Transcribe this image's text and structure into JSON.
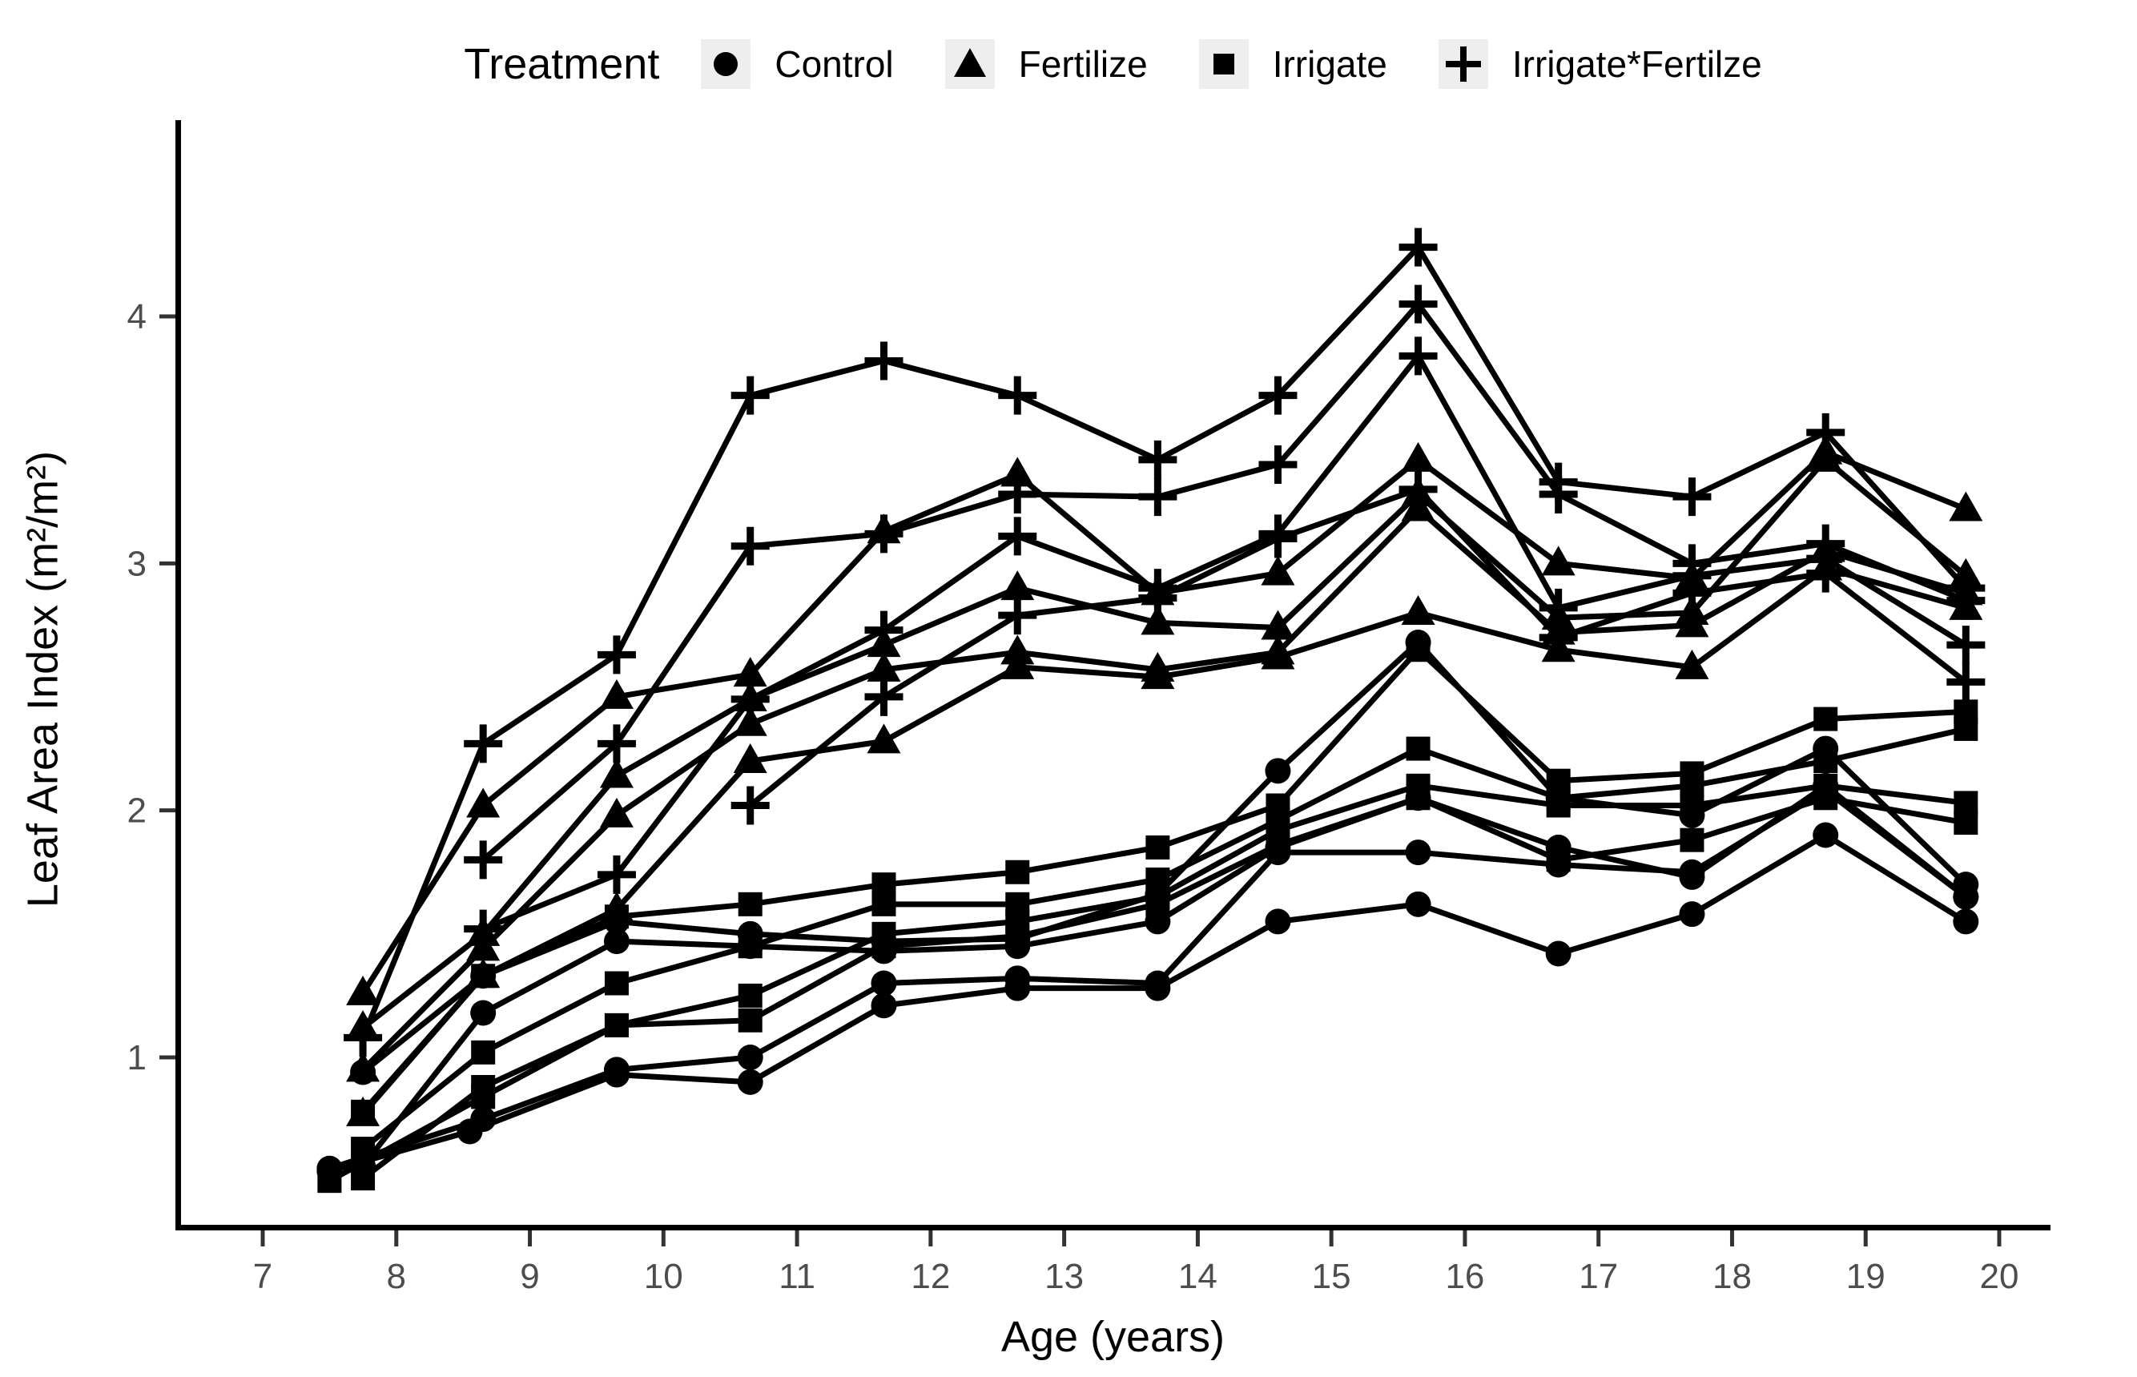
{
  "legend": {
    "title": "Treatment",
    "items": [
      {
        "label": "Control",
        "marker": "circle"
      },
      {
        "label": "Fertilize",
        "marker": "triangle"
      },
      {
        "label": "Irrigate",
        "marker": "square"
      },
      {
        "label": "Irrigate*Fertilze",
        "marker": "plus"
      }
    ]
  },
  "colors": {
    "series": "#000000",
    "axis": "#000000",
    "tick_label": "#4d4d4d",
    "legend_key_bg": "#eeeeee",
    "background": "#ffffff"
  },
  "chart_data": {
    "type": "line",
    "title": "",
    "xlabel": "Age (years)",
    "ylabel": "Leaf Area Index (m²/m²)",
    "xlim": [
      6.35,
      20.38
    ],
    "ylim": [
      0.31,
      4.79
    ],
    "x_ticks": [
      7,
      8,
      9,
      10,
      11,
      12,
      13,
      14,
      15,
      16,
      17,
      18,
      19,
      20
    ],
    "y_ticks": [
      1,
      2,
      3,
      4
    ],
    "grid": false,
    "legend_position": "top",
    "marker_size_note": "solid black markers, one marker shape per treatment",
    "series": [
      {
        "name": "Control 1",
        "treatment": "Control",
        "marker": "circle",
        "x": [
          7.75,
          8.65,
          9.65,
          10.65,
          11.65,
          12.65,
          13.7,
          14.6,
          15.65,
          16.7,
          17.7,
          18.7,
          19.75
        ],
        "y": [
          0.94,
          1.33,
          1.55,
          1.5,
          1.47,
          1.48,
          1.66,
          2.16,
          2.68,
          2.05,
          1.98,
          2.25,
          1.7
        ]
      },
      {
        "name": "Control 2",
        "treatment": "Control",
        "marker": "circle",
        "x": [
          7.75,
          8.65,
          9.65,
          10.65,
          11.65,
          12.65,
          13.7,
          14.6,
          15.65,
          16.7,
          17.7,
          18.7,
          19.75
        ],
        "y": [
          0.56,
          1.18,
          1.47,
          1.45,
          1.43,
          1.45,
          1.55,
          1.85,
          2.05,
          1.85,
          1.73,
          2.1,
          1.65
        ]
      },
      {
        "name": "Control 3",
        "treatment": "Control",
        "marker": "circle",
        "x": [
          7.5,
          8.65,
          9.65,
          10.65,
          11.65,
          12.65,
          13.7,
          14.6,
          15.65,
          16.7,
          17.7,
          18.7,
          19.75
        ],
        "y": [
          0.55,
          0.75,
          0.95,
          1.0,
          1.3,
          1.32,
          1.3,
          1.83,
          1.83,
          1.78,
          1.75,
          2.08,
          1.65
        ]
      },
      {
        "name": "Control 4",
        "treatment": "Control",
        "marker": "circle",
        "x": [
          7.5,
          8.55,
          9.65,
          10.65,
          11.65,
          12.65,
          13.7,
          14.6,
          15.65,
          16.7,
          17.7,
          18.7,
          19.75
        ],
        "y": [
          0.54,
          0.7,
          0.93,
          0.9,
          1.21,
          1.28,
          1.28,
          1.55,
          1.62,
          1.42,
          1.58,
          1.9,
          1.55
        ]
      },
      {
        "name": "Fertilize 1",
        "treatment": "Fertilize",
        "marker": "triangle",
        "x": [
          7.75,
          8.65,
          9.65,
          10.65,
          11.65,
          12.65,
          13.7,
          14.6,
          15.65,
          16.7,
          17.7,
          18.7,
          19.75
        ],
        "y": [
          1.26,
          2.02,
          2.46,
          2.55,
          3.13,
          3.36,
          2.88,
          2.96,
          3.42,
          3.0,
          2.94,
          3.45,
          3.22
        ]
      },
      {
        "name": "Fertilize 2",
        "treatment": "Fertilize",
        "marker": "triangle",
        "x": [
          7.75,
          8.65,
          9.65,
          10.65,
          11.65,
          12.65,
          13.7,
          14.6,
          15.65,
          16.7,
          17.7,
          18.7,
          19.75
        ],
        "y": [
          1.12,
          1.5,
          2.14,
          2.45,
          2.67,
          2.9,
          2.76,
          2.74,
          3.28,
          2.78,
          2.8,
          3.42,
          2.95
        ]
      },
      {
        "name": "Fertilize 3",
        "treatment": "Fertilize",
        "marker": "triangle",
        "x": [
          7.75,
          8.65,
          9.65,
          10.65,
          11.65,
          12.65,
          13.7,
          14.6,
          15.65,
          16.7,
          17.7,
          18.7,
          19.75
        ],
        "y": [
          0.95,
          1.44,
          1.98,
          2.35,
          2.57,
          2.64,
          2.57,
          2.64,
          3.22,
          2.72,
          2.75,
          3.05,
          2.88
        ]
      },
      {
        "name": "Fertilize 4",
        "treatment": "Fertilize",
        "marker": "triangle",
        "x": [
          7.75,
          8.65,
          9.65,
          10.65,
          11.65,
          12.65,
          13.7,
          14.6,
          15.65,
          16.7,
          17.7,
          18.7,
          19.75
        ],
        "y": [
          0.77,
          1.33,
          1.6,
          2.2,
          2.28,
          2.58,
          2.54,
          2.62,
          2.8,
          2.65,
          2.58,
          2.98,
          2.82
        ]
      },
      {
        "name": "Irrigate 1",
        "treatment": "Irrigate",
        "marker": "square",
        "x": [
          7.75,
          8.65,
          9.65,
          10.65,
          11.65,
          12.65,
          13.7,
          14.6,
          15.65,
          16.7,
          17.7,
          18.7,
          19.75
        ],
        "y": [
          0.78,
          1.33,
          1.57,
          1.62,
          1.7,
          1.75,
          1.85,
          2.02,
          2.65,
          2.12,
          2.15,
          2.37,
          2.4
        ]
      },
      {
        "name": "Irrigate 2",
        "treatment": "Irrigate",
        "marker": "square",
        "x": [
          7.75,
          8.65,
          9.65,
          10.65,
          11.65,
          12.65,
          13.7,
          14.6,
          15.65,
          16.7,
          17.7,
          18.7,
          19.75
        ],
        "y": [
          0.63,
          1.02,
          1.3,
          1.45,
          1.62,
          1.62,
          1.72,
          1.96,
          2.25,
          2.05,
          2.1,
          2.2,
          2.33
        ]
      },
      {
        "name": "Irrigate 3",
        "treatment": "Irrigate",
        "marker": "square",
        "x": [
          7.75,
          8.65,
          9.65,
          10.65,
          11.65,
          12.65,
          13.7,
          14.6,
          15.65,
          16.7,
          17.7,
          18.7,
          19.75
        ],
        "y": [
          0.51,
          0.88,
          1.13,
          1.25,
          1.5,
          1.55,
          1.65,
          1.92,
          2.1,
          2.02,
          2.02,
          2.1,
          2.03
        ]
      },
      {
        "name": "Irrigate 4",
        "treatment": "Irrigate",
        "marker": "square",
        "x": [
          7.5,
          8.65,
          9.65,
          10.65,
          11.65,
          12.65,
          13.7,
          14.6,
          15.65,
          16.7,
          17.7,
          18.7,
          19.75
        ],
        "y": [
          0.5,
          0.84,
          1.13,
          1.15,
          1.45,
          1.49,
          1.62,
          1.86,
          2.05,
          1.8,
          1.88,
          2.05,
          1.95
        ]
      },
      {
        "name": "Irrigate*Fertilze 1",
        "treatment": "Irrigate*Fertilze",
        "marker": "plus",
        "x": [
          7.75,
          8.65,
          9.65,
          10.65,
          11.65,
          12.65,
          13.7,
          14.6,
          15.65,
          16.7,
          17.7,
          18.7,
          19.75
        ],
        "y": [
          1.08,
          2.27,
          2.63,
          3.68,
          3.82,
          3.68,
          3.42,
          3.68,
          4.28,
          3.33,
          3.27,
          3.53,
          2.9
        ]
      },
      {
        "name": "Irrigate*Fertilze 2",
        "treatment": "Irrigate*Fertilze",
        "marker": "plus",
        "x": [
          8.65,
          9.65,
          10.65,
          11.65,
          12.65,
          13.7,
          14.6,
          15.65,
          16.7,
          17.7,
          18.7,
          19.75
        ],
        "y": [
          1.8,
          2.27,
          3.07,
          3.12,
          3.28,
          3.27,
          3.4,
          4.05,
          3.28,
          3.0,
          3.08,
          2.85
        ]
      },
      {
        "name": "Irrigate*Fertilze 3",
        "treatment": "Irrigate*Fertilze",
        "marker": "plus",
        "x": [
          8.65,
          9.65,
          10.65,
          11.65,
          12.65,
          13.7,
          14.6,
          15.65,
          16.7,
          17.7,
          18.7,
          19.75
        ],
        "y": [
          1.52,
          1.74,
          2.45,
          2.73,
          3.11,
          2.9,
          3.12,
          3.84,
          2.82,
          2.95,
          3.02,
          2.67
        ]
      },
      {
        "name": "Irrigate*Fertilze 4",
        "treatment": "Irrigate*Fertilze",
        "marker": "plus",
        "x": [
          10.65,
          11.65,
          12.65,
          13.7,
          14.6,
          15.65,
          16.7,
          17.7,
          18.7,
          19.75
        ],
        "y": [
          2.02,
          2.46,
          2.79,
          2.86,
          3.1,
          3.3,
          2.7,
          2.88,
          2.96,
          2.52
        ]
      }
    ]
  }
}
